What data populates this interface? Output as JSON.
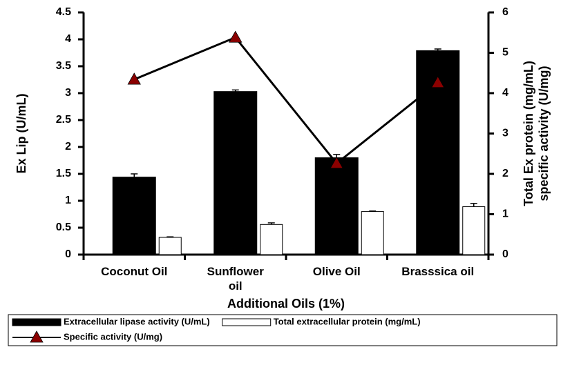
{
  "chart_data": {
    "type": "bar-line",
    "categories": [
      "Coconut Oil",
      "Sunflower\noil",
      "Olive Oil",
      "Brasssica oil"
    ],
    "xlabel": "Additional Oils (1%)",
    "ylabel": "Ex Lip (U/mL)",
    "y2label": [
      "Total Ex protein (mg/mL)",
      "specific activity (U/mg)"
    ],
    "ylim": [
      0,
      4.5
    ],
    "yticks": [
      0,
      0.5,
      1,
      1.5,
      2,
      2.5,
      3,
      3.5,
      4,
      4.5
    ],
    "y2lim": [
      0,
      6
    ],
    "y2ticks": [
      0,
      1,
      2,
      3,
      4,
      5,
      6
    ],
    "series": [
      {
        "name": "Extracellular lipase activity (U/mL)",
        "kind": "bar",
        "color": "#000000",
        "values": [
          1.44,
          3.03,
          1.8,
          3.79
        ],
        "errors": [
          0.06,
          0.03,
          0.06,
          0.03
        ]
      },
      {
        "name": "Total extracellular protein (mg/mL)",
        "kind": "bar",
        "color": "#ffffff",
        "values": [
          0.32,
          0.56,
          0.8,
          0.89
        ],
        "errors": [
          0.01,
          0.03,
          0.01,
          0.06
        ]
      },
      {
        "name": "Specific activity (U/mg)",
        "kind": "line",
        "axis": "y2",
        "color": "#000000",
        "marker_color": "#8b0000",
        "values": [
          4.34,
          5.38,
          2.26,
          4.26
        ]
      }
    ]
  }
}
